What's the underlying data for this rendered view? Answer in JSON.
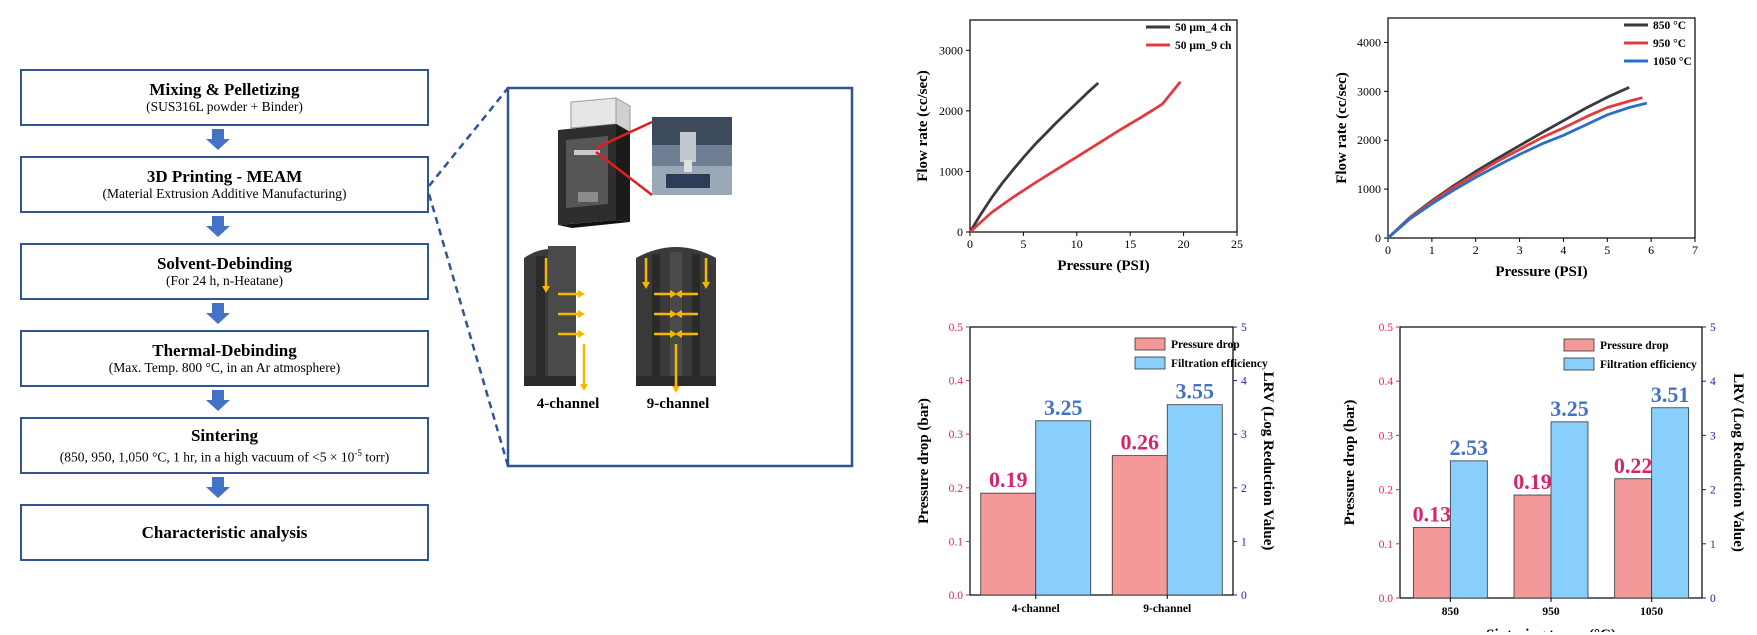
{
  "flow": {
    "steps": [
      {
        "title": "Mixing & Pelletizing",
        "sub": "(SUS316L powder + Binder)"
      },
      {
        "title": "3D Printing - MEAM",
        "sub": "(Material Extrusion Additive Manufacturing)"
      },
      {
        "title": "Solvent-Debinding",
        "sub": "(For 24 h, n-Heatane)"
      },
      {
        "title": "Thermal-Debinding",
        "sub": "(Max. Temp. 800 °C,  in an Ar atmosphere)"
      },
      {
        "title": "Sintering",
        "sub_prefix": "(850, 950, 1,050 °C, 1 hr, in a high vacuum of <5 × 10",
        "sub_sup": "-5",
        "sub_suffix": " torr)"
      },
      {
        "title": "Characteristic analysis",
        "sub": ""
      }
    ]
  },
  "illustration": {
    "label_4ch": "4-channel",
    "label_9ch": "9-channel",
    "colors": {
      "frame": "#2f5597",
      "arrow": "#f5b800",
      "zoom_line": "#e0201c",
      "part": "#3a3a3a"
    }
  },
  "chart_data": [
    {
      "id": "flow-vs-pressure-channels",
      "type": "line",
      "xlabel": "Pressure (PSI)",
      "ylabel": "Flow rate (cc/sec)",
      "xlim": [
        0,
        25
      ],
      "ylim": [
        0,
        3500
      ],
      "xticks": [
        0,
        5,
        10,
        15,
        20,
        25
      ],
      "yticks": [
        0,
        1000,
        2000,
        3000
      ],
      "legend_position": "top-right",
      "series": [
        {
          "name": "50 μm_4 ch",
          "color": "#3a3a3a",
          "x": [
            0,
            1,
            2,
            3,
            4,
            5,
            6,
            7,
            8,
            9,
            10,
            11,
            12
          ],
          "y": [
            0,
            290,
            560,
            800,
            1020,
            1230,
            1430,
            1610,
            1790,
            1960,
            2130,
            2300,
            2460
          ]
        },
        {
          "name": "50 μm_9 ch",
          "color": "#e03c3c",
          "x": [
            0,
            2,
            4,
            6,
            8,
            10,
            12,
            14,
            16,
            18,
            19.7
          ],
          "y": [
            0,
            320,
            570,
            800,
            1020,
            1240,
            1460,
            1680,
            1890,
            2110,
            2480
          ]
        }
      ]
    },
    {
      "id": "flow-vs-pressure-temp",
      "type": "line",
      "xlabel": "Pressure (PSI)",
      "ylabel": "Flow rate (cc/sec)",
      "xlim": [
        0,
        7
      ],
      "ylim": [
        0,
        4500
      ],
      "xticks": [
        0,
        1,
        2,
        3,
        4,
        5,
        6,
        7
      ],
      "yticks": [
        0,
        1000,
        2000,
        3000,
        4000
      ],
      "legend_position": "top-right",
      "series": [
        {
          "name": "850 °C",
          "color": "#3a3a3a",
          "x": [
            0,
            0.5,
            1,
            1.5,
            2,
            2.5,
            3,
            3.5,
            4,
            4.5,
            5,
            5.5
          ],
          "y": [
            0,
            420,
            760,
            1070,
            1360,
            1630,
            1890,
            2150,
            2400,
            2650,
            2880,
            3080
          ]
        },
        {
          "name": "950 °C",
          "color": "#e03c3c",
          "x": [
            0,
            0.5,
            1,
            1.5,
            2,
            2.5,
            3,
            3.5,
            4,
            4.5,
            5,
            5.5,
            5.8
          ],
          "y": [
            0,
            410,
            740,
            1040,
            1310,
            1570,
            1810,
            2050,
            2250,
            2470,
            2670,
            2800,
            2870
          ]
        },
        {
          "name": "1050 °C",
          "color": "#2a6fc9",
          "x": [
            0,
            0.5,
            1,
            1.5,
            2,
            2.5,
            3,
            3.5,
            4,
            4.5,
            5,
            5.5,
            5.9
          ],
          "y": [
            0,
            390,
            700,
            980,
            1240,
            1480,
            1710,
            1920,
            2100,
            2310,
            2520,
            2670,
            2760
          ]
        }
      ]
    },
    {
      "id": "pressure-drop-lrv-channels",
      "type": "bar",
      "categories": [
        "4-channel",
        "9-channel"
      ],
      "xlabel": "",
      "ylabel": "Pressure drop (bar)",
      "y2label": "LRV (Log Reduction Value)",
      "ylim": [
        0,
        0.5
      ],
      "y2lim": [
        0,
        5
      ],
      "yticks": [
        0.0,
        0.1,
        0.2,
        0.3,
        0.4,
        0.5
      ],
      "y2ticks": [
        0,
        1,
        2,
        3,
        4,
        5
      ],
      "legend_position": "top-right",
      "series": [
        {
          "name": "Pressure drop",
          "axis": "left",
          "color": "#f4999a",
          "label_color": "#d6246e",
          "values": [
            0.19,
            0.26
          ],
          "labels": [
            "0.19",
            "0.26"
          ]
        },
        {
          "name": "Filtration efficiency",
          "axis": "right",
          "color": "#88d0fb",
          "label_color": "#4472c4",
          "values": [
            3.25,
            3.55
          ],
          "labels": [
            "3.25",
            "3.55"
          ]
        }
      ]
    },
    {
      "id": "pressure-drop-lrv-temp",
      "type": "bar",
      "categories": [
        "850",
        "950",
        "1050"
      ],
      "xlabel": "Sintering temp. (°C)",
      "ylabel": "Pressure drop (bar)",
      "y2label": "LRV (Log Reduction Value)",
      "ylim": [
        0,
        0.5
      ],
      "y2lim": [
        0,
        5
      ],
      "yticks": [
        0.0,
        0.1,
        0.2,
        0.3,
        0.4,
        0.5
      ],
      "y2ticks": [
        0,
        1,
        2,
        3,
        4,
        5
      ],
      "legend_position": "top-right",
      "series": [
        {
          "name": "Pressure drop",
          "axis": "left",
          "color": "#f4999a",
          "label_color": "#d6246e",
          "values": [
            0.13,
            0.19,
            0.22
          ],
          "labels": [
            "0.13",
            "0.19",
            "0.22"
          ]
        },
        {
          "name": "Filtration efficiency",
          "axis": "right",
          "color": "#88d0fb",
          "label_color": "#4472c4",
          "values": [
            2.53,
            3.25,
            3.51
          ],
          "labels": [
            "2.53",
            "3.25",
            "3.51"
          ]
        }
      ]
    }
  ]
}
